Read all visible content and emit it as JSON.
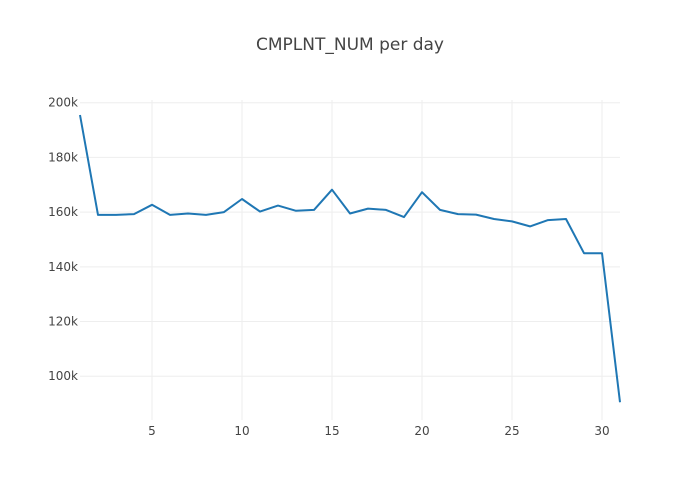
{
  "chart_data": {
    "type": "line",
    "title": "CMPLNT_NUM per day",
    "xlabel": "",
    "ylabel": "",
    "xlim": [
      1,
      31
    ],
    "ylim": [
      84000,
      201000
    ],
    "grid": true,
    "x_ticks": [
      5,
      10,
      15,
      20,
      25,
      30
    ],
    "y_ticks": [
      {
        "value": 100000,
        "label": "100k"
      },
      {
        "value": 120000,
        "label": "120k"
      },
      {
        "value": 140000,
        "label": "140k"
      },
      {
        "value": 160000,
        "label": "160k"
      },
      {
        "value": 180000,
        "label": "180k"
      },
      {
        "value": 200000,
        "label": "200k"
      }
    ],
    "series": [
      {
        "color": "#1f77b4",
        "x": [
          1,
          2,
          3,
          4,
          5,
          6,
          7,
          8,
          9,
          10,
          11,
          12,
          13,
          14,
          15,
          16,
          17,
          18,
          19,
          20,
          21,
          22,
          23,
          24,
          25,
          26,
          27,
          28,
          29,
          30,
          31
        ],
        "y": [
          195500,
          159000,
          159000,
          159300,
          162700,
          159000,
          159500,
          159000,
          160000,
          164800,
          160200,
          162400,
          160500,
          160800,
          168200,
          159500,
          161300,
          160800,
          158200,
          167300,
          160800,
          159300,
          159100,
          157500,
          156600,
          154800,
          157100,
          157500,
          145000,
          145000,
          90500
        ]
      }
    ]
  }
}
